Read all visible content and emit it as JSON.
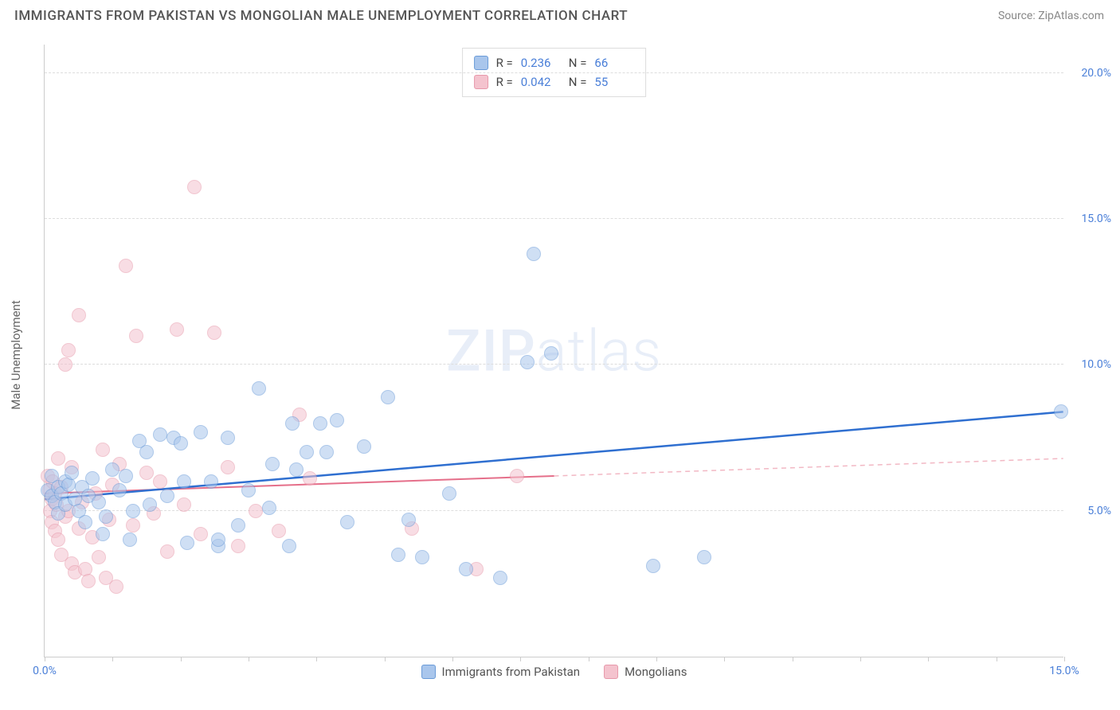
{
  "header": {
    "title": "IMMIGRANTS FROM PAKISTAN VS MONGOLIAN MALE UNEMPLOYMENT CORRELATION CHART",
    "source": "Source: ZipAtlas.com"
  },
  "watermark": {
    "zip": "ZIP",
    "atlas": "atlas"
  },
  "chart": {
    "type": "scatter",
    "y_axis_title": "Male Unemployment",
    "background_color": "#ffffff",
    "grid_color": "#dddddd",
    "axis_color": "#cccccc",
    "tick_label_color": "#4a7fd8",
    "xlim": [
      0,
      15
    ],
    "ylim": [
      0,
      21
    ],
    "x_ticks": [
      0,
      1,
      2,
      3,
      4,
      5,
      6,
      7,
      8,
      9,
      10,
      11,
      12,
      13,
      14,
      15
    ],
    "x_tick_labels": {
      "0": "0.0%",
      "15": "15.0%"
    },
    "y_gridlines": [
      5,
      10,
      15,
      20
    ],
    "y_tick_labels": {
      "5": "5.0%",
      "10": "10.0%",
      "15": "15.0%",
      "20": "20.0%"
    },
    "point_radius": 9,
    "point_opacity": 0.55,
    "series": [
      {
        "key": "pakistan",
        "label": "Immigrants from Pakistan",
        "fill": "#a9c6ec",
        "stroke": "#6a9bd8",
        "R": "0.236",
        "N": "66",
        "trend": {
          "x1": 0,
          "y1": 5.4,
          "x2": 15,
          "y2": 8.4,
          "color": "#2f6fd0",
          "width": 2.5,
          "dash": ""
        },
        "points": [
          [
            0.05,
            5.7
          ],
          [
            0.1,
            6.2
          ],
          [
            0.1,
            5.5
          ],
          [
            0.15,
            5.3
          ],
          [
            0.2,
            5.8
          ],
          [
            0.2,
            4.9
          ],
          [
            0.25,
            5.6
          ],
          [
            0.3,
            6.0
          ],
          [
            0.3,
            5.2
          ],
          [
            0.35,
            5.9
          ],
          [
            0.4,
            6.3
          ],
          [
            0.45,
            5.4
          ],
          [
            0.5,
            5.0
          ],
          [
            0.55,
            5.8
          ],
          [
            0.6,
            4.6
          ],
          [
            0.65,
            5.5
          ],
          [
            0.7,
            6.1
          ],
          [
            0.8,
            5.3
          ],
          [
            0.85,
            4.2
          ],
          [
            0.9,
            4.8
          ],
          [
            1.0,
            6.4
          ],
          [
            1.1,
            5.7
          ],
          [
            1.2,
            6.2
          ],
          [
            1.25,
            4.0
          ],
          [
            1.3,
            5.0
          ],
          [
            1.4,
            7.4
          ],
          [
            1.5,
            7.0
          ],
          [
            1.55,
            5.2
          ],
          [
            1.7,
            7.6
          ],
          [
            1.8,
            5.5
          ],
          [
            1.9,
            7.5
          ],
          [
            2.0,
            7.3
          ],
          [
            2.05,
            6.0
          ],
          [
            2.1,
            3.9
          ],
          [
            2.3,
            7.7
          ],
          [
            2.45,
            6.0
          ],
          [
            2.55,
            3.8
          ],
          [
            2.55,
            4.0
          ],
          [
            2.7,
            7.5
          ],
          [
            2.85,
            4.5
          ],
          [
            3.0,
            5.7
          ],
          [
            3.15,
            9.2
          ],
          [
            3.3,
            5.1
          ],
          [
            3.35,
            6.6
          ],
          [
            3.6,
            3.8
          ],
          [
            3.65,
            8.0
          ],
          [
            3.7,
            6.4
          ],
          [
            3.85,
            7.0
          ],
          [
            4.05,
            8.0
          ],
          [
            4.15,
            7.0
          ],
          [
            4.3,
            8.1
          ],
          [
            4.45,
            4.6
          ],
          [
            4.7,
            7.2
          ],
          [
            5.05,
            8.9
          ],
          [
            5.2,
            3.5
          ],
          [
            5.35,
            4.7
          ],
          [
            5.55,
            3.4
          ],
          [
            5.95,
            5.6
          ],
          [
            6.2,
            3.0
          ],
          [
            6.7,
            2.7
          ],
          [
            7.1,
            10.1
          ],
          [
            7.2,
            13.8
          ],
          [
            7.45,
            10.4
          ],
          [
            8.95,
            3.1
          ],
          [
            9.7,
            3.4
          ],
          [
            14.95,
            8.4
          ]
        ]
      },
      {
        "key": "mongolians",
        "label": "Mongolians",
        "fill": "#f4c3ce",
        "stroke": "#e798aa",
        "R": "0.042",
        "N": "55",
        "trend_solid": {
          "x1": 0,
          "y1": 5.6,
          "x2": 7.5,
          "y2": 6.2,
          "color": "#e56f8a",
          "width": 2,
          "dash": ""
        },
        "trend_dash": {
          "x1": 7.5,
          "y1": 6.2,
          "x2": 15,
          "y2": 6.8,
          "color": "#f2b8c4",
          "width": 1.5,
          "dash": "6,5"
        },
        "points": [
          [
            0.05,
            6.2
          ],
          [
            0.07,
            5.7
          ],
          [
            0.08,
            5.0
          ],
          [
            0.1,
            4.6
          ],
          [
            0.1,
            5.4
          ],
          [
            0.12,
            6.0
          ],
          [
            0.15,
            4.3
          ],
          [
            0.15,
            5.6
          ],
          [
            0.18,
            5.2
          ],
          [
            0.2,
            4.0
          ],
          [
            0.2,
            6.8
          ],
          [
            0.25,
            3.5
          ],
          [
            0.25,
            5.8
          ],
          [
            0.3,
            4.8
          ],
          [
            0.3,
            10.0
          ],
          [
            0.35,
            5.0
          ],
          [
            0.35,
            10.5
          ],
          [
            0.4,
            3.2
          ],
          [
            0.4,
            6.5
          ],
          [
            0.45,
            2.9
          ],
          [
            0.5,
            4.4
          ],
          [
            0.5,
            11.7
          ],
          [
            0.55,
            5.3
          ],
          [
            0.6,
            3.0
          ],
          [
            0.65,
            2.6
          ],
          [
            0.7,
            4.1
          ],
          [
            0.75,
            5.6
          ],
          [
            0.8,
            3.4
          ],
          [
            0.85,
            7.1
          ],
          [
            0.9,
            2.7
          ],
          [
            0.95,
            4.7
          ],
          [
            1.0,
            5.9
          ],
          [
            1.05,
            2.4
          ],
          [
            1.1,
            6.6
          ],
          [
            1.2,
            13.4
          ],
          [
            1.3,
            4.5
          ],
          [
            1.35,
            11.0
          ],
          [
            1.5,
            6.3
          ],
          [
            1.6,
            4.9
          ],
          [
            1.7,
            6.0
          ],
          [
            1.8,
            3.6
          ],
          [
            1.95,
            11.2
          ],
          [
            2.05,
            5.2
          ],
          [
            2.2,
            16.1
          ],
          [
            2.3,
            4.2
          ],
          [
            2.5,
            11.1
          ],
          [
            2.7,
            6.5
          ],
          [
            2.85,
            3.8
          ],
          [
            3.1,
            5.0
          ],
          [
            3.45,
            4.3
          ],
          [
            3.75,
            8.3
          ],
          [
            3.9,
            6.1
          ],
          [
            5.4,
            4.4
          ],
          [
            6.35,
            3.0
          ],
          [
            6.95,
            6.2
          ]
        ]
      }
    ],
    "legend_top": {
      "r_label": "R  =",
      "n_label": "N  ="
    }
  }
}
